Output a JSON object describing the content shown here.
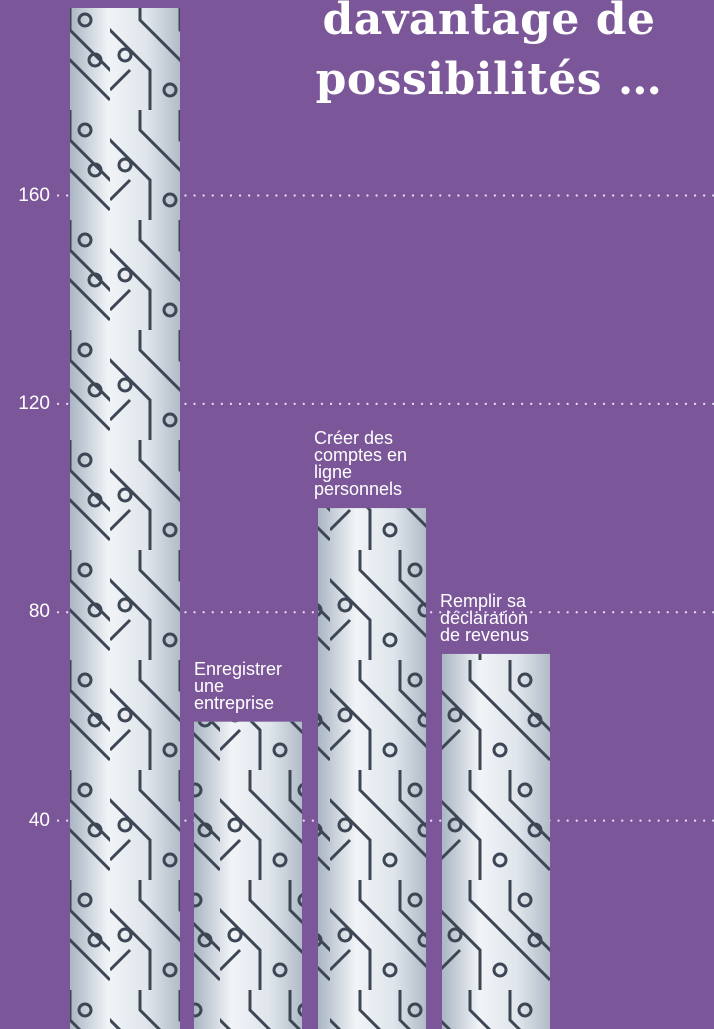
{
  "title_lines": [
    "davantage de",
    "possibilités …"
  ],
  "colors": {
    "background": "#7b579a",
    "text": "#ffffff",
    "gridline": "#e8ddf2"
  },
  "chart_data": {
    "type": "bar",
    "categories": [
      "",
      "Enregistrer une entreprise",
      "Créer des comptes en ligne personnels",
      "Remplir sa déclaration de revenus"
    ],
    "values": [
      196,
      59,
      100,
      72
    ],
    "y_ticks": [
      40,
      80,
      120,
      160
    ],
    "ylim": [
      0,
      196
    ],
    "grid": "dotted horizontal",
    "bar_style": "circuit-board texture"
  }
}
